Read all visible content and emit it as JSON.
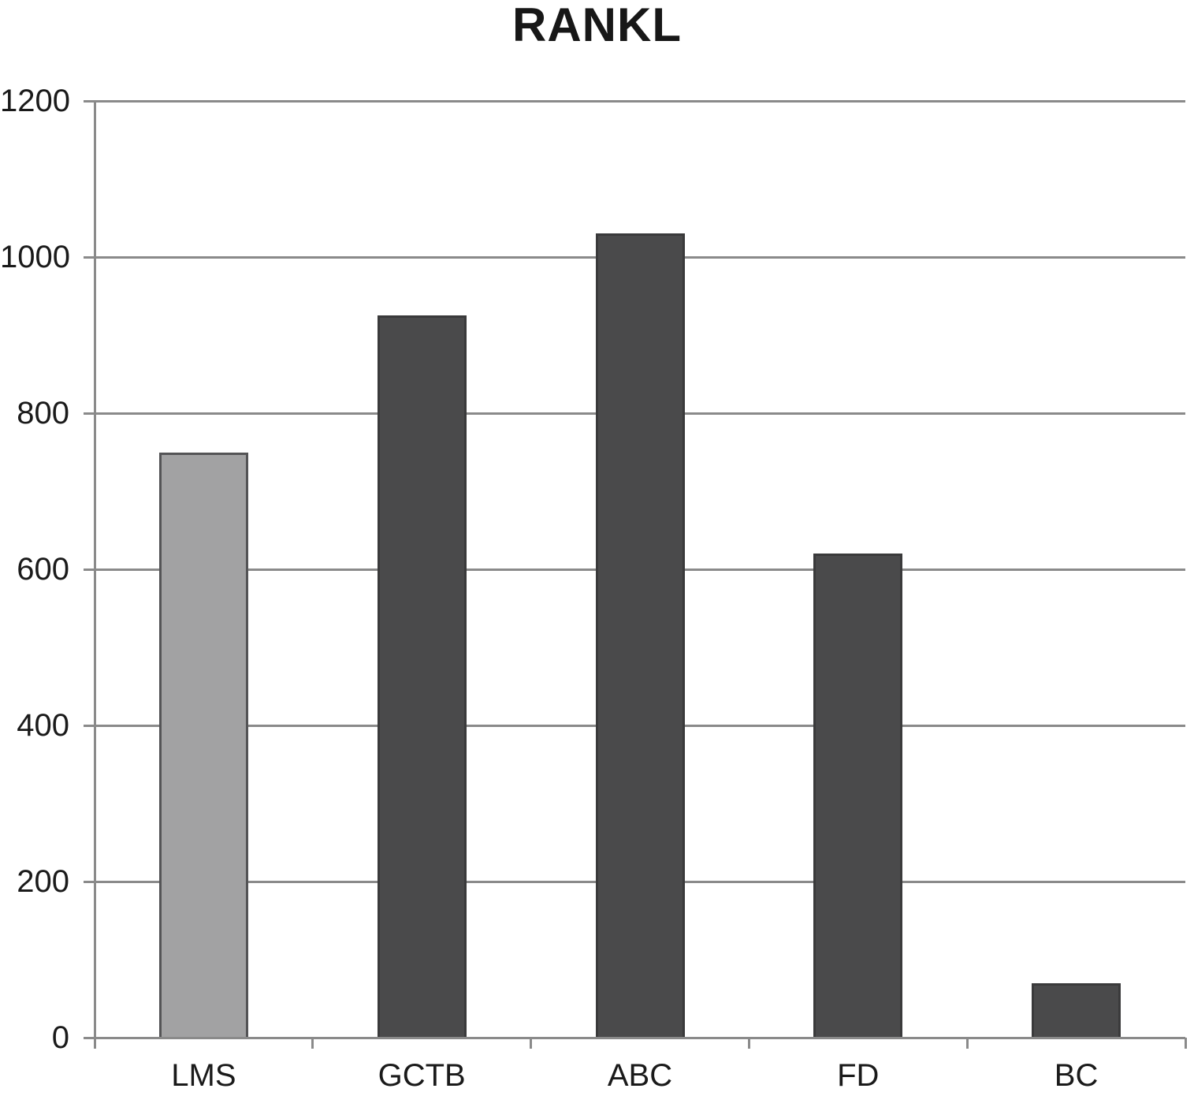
{
  "chart_data": {
    "type": "bar",
    "title": "RANKL",
    "categories": [
      "LMS",
      "GCTB",
      "ABC",
      "FD",
      "BC"
    ],
    "values": [
      750,
      925,
      1030,
      620,
      70
    ],
    "yticks": [
      0,
      200,
      400,
      600,
      800,
      1000,
      1200
    ],
    "ylim": [
      0,
      1200
    ],
    "xlabel": "",
    "ylabel": "",
    "grid": "horizontal",
    "legend": "none",
    "bar_fill_colors": [
      "#a2a2a3",
      "#4a4a4b",
      "#4a4a4b",
      "#4a4a4b",
      "#4a4a4b"
    ],
    "bar_border_colors": [
      "#545456",
      "#3a3a3b",
      "#3a3a3b",
      "#3a3a3b",
      "#3a3a3b"
    ],
    "axis_color": "#8a8a8a",
    "text_color": "#1a1a1a",
    "background_color": "#ffffff"
  }
}
